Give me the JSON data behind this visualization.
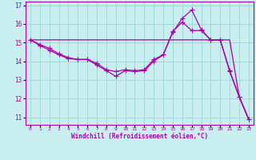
{
  "xlabel": "Windchill (Refroidissement éolien,°C)",
  "background_color": "#c8eef0",
  "grid_color": "#a0d8d8",
  "line_color": "#aa00aa",
  "xlim": [
    -0.5,
    23.5
  ],
  "ylim": [
    10.6,
    17.2
  ],
  "yticks": [
    11,
    12,
    13,
    14,
    15,
    16,
    17
  ],
  "xticks": [
    0,
    1,
    2,
    3,
    4,
    5,
    6,
    7,
    8,
    9,
    10,
    11,
    12,
    13,
    14,
    15,
    16,
    17,
    18,
    19,
    20,
    21,
    22,
    23
  ],
  "line1_x": [
    0,
    1,
    2,
    3,
    4,
    5,
    6,
    7,
    8,
    9,
    10,
    11,
    12,
    13,
    14,
    15,
    16,
    17,
    18,
    19,
    20,
    21,
    22,
    23
  ],
  "line1_y": [
    15.15,
    15.15,
    15.15,
    15.15,
    15.15,
    15.15,
    15.15,
    15.15,
    15.15,
    15.15,
    15.15,
    15.15,
    15.15,
    15.15,
    15.15,
    15.15,
    15.15,
    15.15,
    15.15,
    15.15,
    15.15,
    15.15,
    12.1,
    10.9
  ],
  "line2_x": [
    0,
    1,
    2,
    3,
    4,
    5,
    6,
    7,
    8,
    9,
    10,
    11,
    12,
    13,
    14,
    15,
    16,
    17,
    18,
    19,
    20,
    21,
    22,
    23
  ],
  "line2_y": [
    15.15,
    14.85,
    14.6,
    14.35,
    14.15,
    14.1,
    14.1,
    13.8,
    13.5,
    13.2,
    13.5,
    13.45,
    13.5,
    14.0,
    14.35,
    15.55,
    16.3,
    16.75,
    15.7,
    15.15,
    15.15,
    13.5,
    12.1,
    10.9
  ],
  "line3_x": [
    0,
    1,
    2,
    3,
    4,
    5,
    6,
    7,
    8,
    9,
    10,
    11,
    12,
    13,
    14,
    15,
    16,
    17,
    18,
    19,
    20,
    21,
    22,
    23
  ],
  "line3_y": [
    15.15,
    14.9,
    14.7,
    14.4,
    14.2,
    14.1,
    14.1,
    13.9,
    13.55,
    13.45,
    13.55,
    13.5,
    13.55,
    14.1,
    14.35,
    15.6,
    16.1,
    15.65,
    15.65,
    15.15,
    15.15,
    13.45,
    12.1,
    10.9
  ]
}
